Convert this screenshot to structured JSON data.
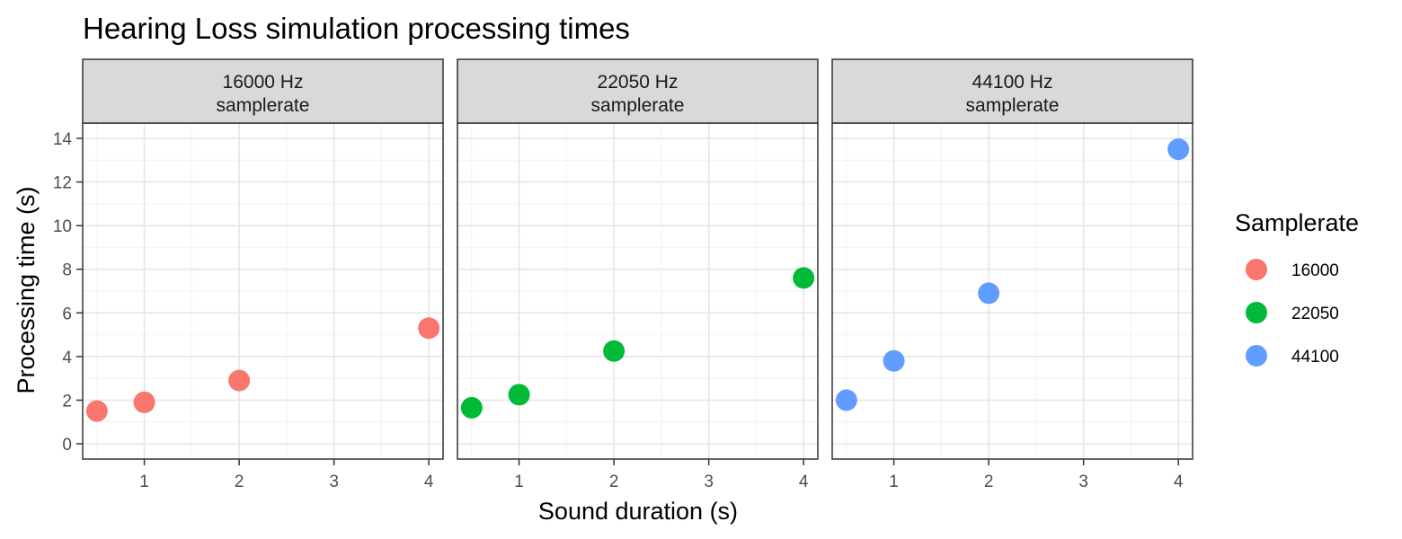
{
  "chart_data": {
    "type": "scatter",
    "title": "Hearing Loss simulation processing times",
    "xlabel": "Sound duration (s)",
    "ylabel": "Processing time (s)",
    "xlim": [
      0.35,
      4.15
    ],
    "ylim": [
      -0.7,
      14.7
    ],
    "x_ticks": [
      1,
      2,
      3,
      4
    ],
    "y_ticks": [
      0,
      2,
      4,
      6,
      8,
      10,
      12,
      14
    ],
    "grid": true,
    "legend": {
      "title": "Samplerate",
      "position": "right"
    },
    "facets": [
      {
        "strip": [
          "16000 Hz",
          "samplerate"
        ],
        "series": "16000",
        "color": "#F8766D",
        "points": [
          {
            "x": 0.5,
            "y": 1.5
          },
          {
            "x": 1,
            "y": 1.9
          },
          {
            "x": 2,
            "y": 2.9
          },
          {
            "x": 4,
            "y": 5.3
          }
        ]
      },
      {
        "strip": [
          "22050 Hz",
          "samplerate"
        ],
        "series": "22050",
        "color": "#00BA38",
        "points": [
          {
            "x": 0.5,
            "y": 1.65
          },
          {
            "x": 1,
            "y": 2.25
          },
          {
            "x": 2,
            "y": 4.25
          },
          {
            "x": 4,
            "y": 7.6
          }
        ]
      },
      {
        "strip": [
          "44100 Hz",
          "samplerate"
        ],
        "series": "44100",
        "color": "#619CFF",
        "points": [
          {
            "x": 0.5,
            "y": 2.0
          },
          {
            "x": 1,
            "y": 3.8
          },
          {
            "x": 2,
            "y": 6.9
          },
          {
            "x": 4,
            "y": 13.5
          }
        ]
      }
    ]
  }
}
